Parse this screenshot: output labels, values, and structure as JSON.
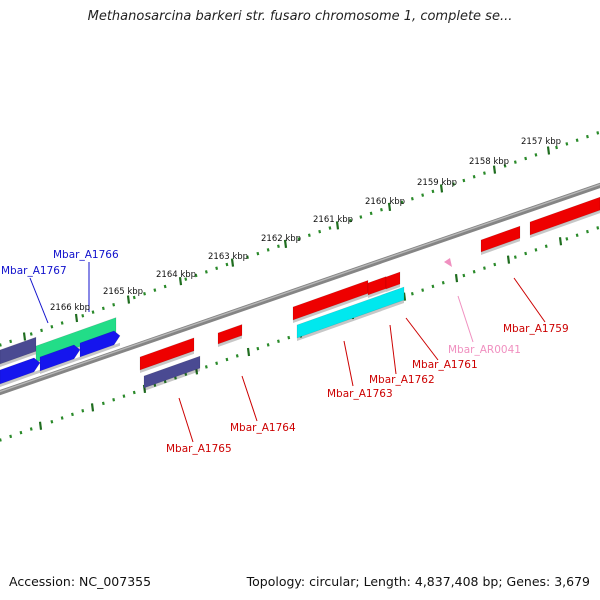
{
  "title": "Methanosarcina barkeri str. fusaro chromosome 1, complete se...",
  "footer": {
    "accession": "Accession: NC_007355",
    "summary": "Topology: circular; Length: 4,837,408 bp; Genes: 3,679"
  },
  "ruler": {
    "unit": "kbp",
    "ticks": [
      "2157 kbp",
      "2158 kbp",
      "2159 kbp",
      "2160 kbp",
      "2161 kbp",
      "2162 kbp",
      "2163 kbp",
      "2164 kbp",
      "2165 kbp",
      "2166 kbp"
    ]
  },
  "colors": {
    "backbone": "#858585",
    "tick_dots": "#2a8a2a",
    "tick_major": "#1f6d1f",
    "cds": "#ee0000",
    "gene_label": "#cc0000",
    "dark_blue": "#4a4a92",
    "blue": "#1515ee",
    "cyan": "#00e8ee",
    "green": "#22dd88",
    "label_blue": "#1010cc",
    "pink": "#f090c0"
  },
  "genes": [
    {
      "name": "Mbar_A1759"
    },
    {
      "name": "Mbar_AR0041"
    },
    {
      "name": "Mbar_A1761"
    },
    {
      "name": "Mbar_A1762"
    },
    {
      "name": "Mbar_A1763"
    },
    {
      "name": "Mbar_A1764"
    },
    {
      "name": "Mbar_A1765"
    },
    {
      "name": "Mbar_A1766"
    },
    {
      "name": "Mbar_A1767"
    }
  ]
}
